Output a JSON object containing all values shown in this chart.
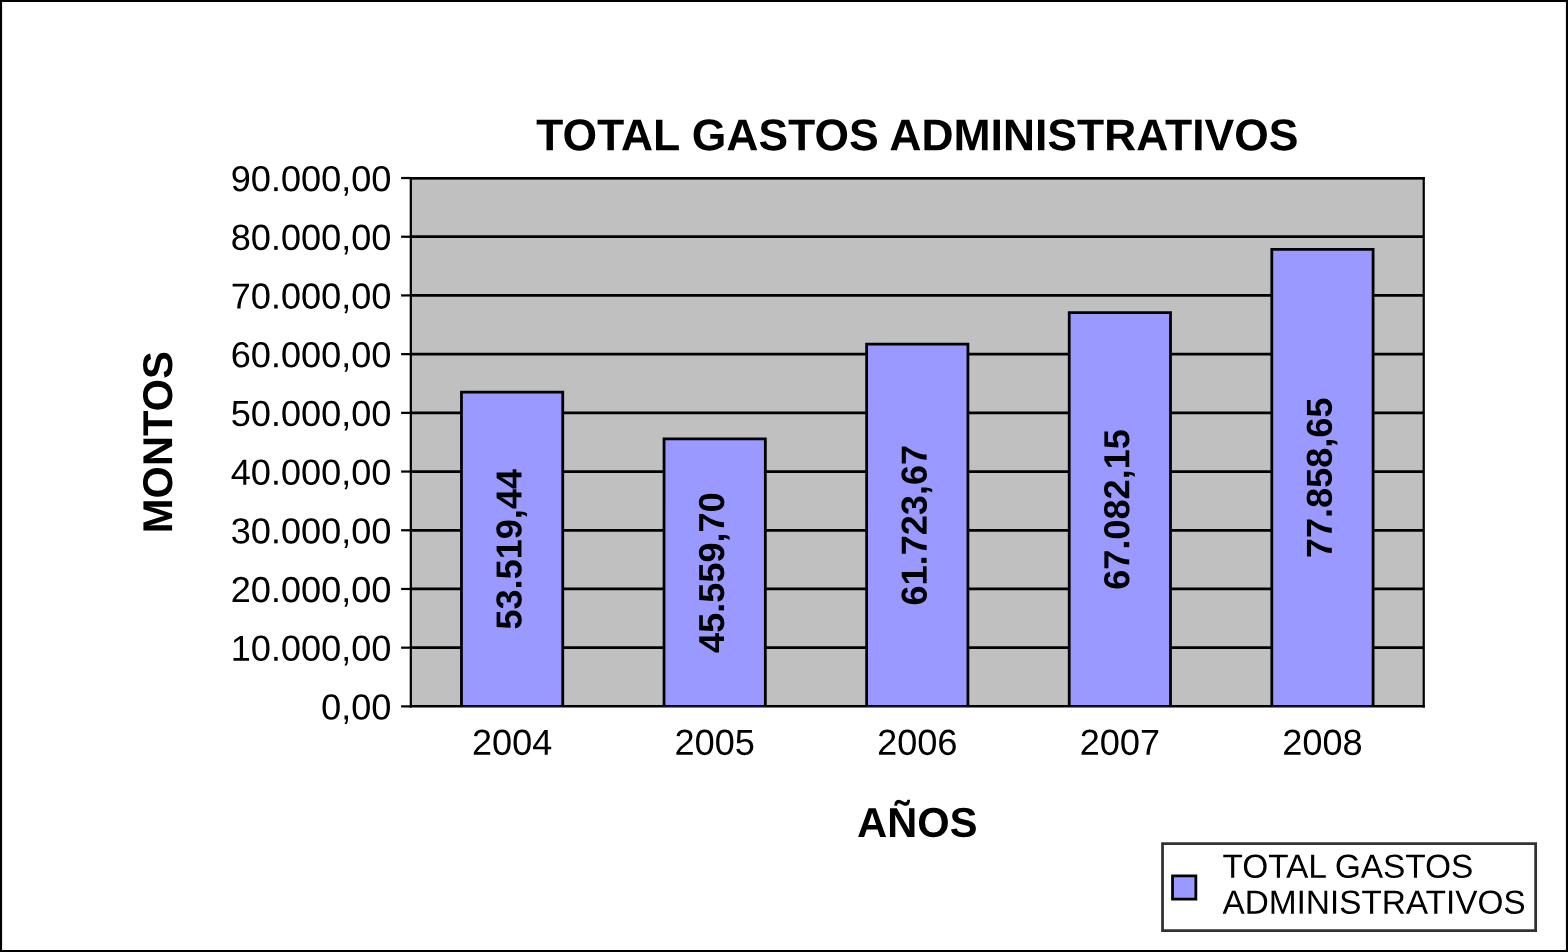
{
  "chart_data": {
    "type": "bar",
    "title": "TOTAL GASTOS ADMINISTRATIVOS",
    "xlabel": "AÑOS",
    "ylabel": "MONTOS",
    "categories": [
      "2004",
      "2005",
      "2006",
      "2007",
      "2008"
    ],
    "series": [
      {
        "name": "TOTAL GASTOS\nADMINISTRATIVOS",
        "color": "#9999ff",
        "values": [
          53519.44,
          45559.7,
          61723.67,
          67082.15,
          77858.65
        ],
        "value_labels": [
          "53.519,44",
          "45.559,70",
          "61.723,67",
          "67.082,15",
          "77.858,65"
        ]
      }
    ],
    "ylim": [
      0,
      90000
    ],
    "yticks": [
      {
        "value": 0,
        "label": "0,00"
      },
      {
        "value": 10000,
        "label": "10.000,00"
      },
      {
        "value": 20000,
        "label": "20.000,00"
      },
      {
        "value": 30000,
        "label": "30.000,00"
      },
      {
        "value": 40000,
        "label": "40.000,00"
      },
      {
        "value": 50000,
        "label": "50.000,00"
      },
      {
        "value": 60000,
        "label": "60.000,00"
      },
      {
        "value": 70000,
        "label": "70.000,00"
      },
      {
        "value": 80000,
        "label": "80.000,00"
      },
      {
        "value": 90000,
        "label": "90.000,00"
      }
    ],
    "grid": "y",
    "legend": "bottom right"
  }
}
